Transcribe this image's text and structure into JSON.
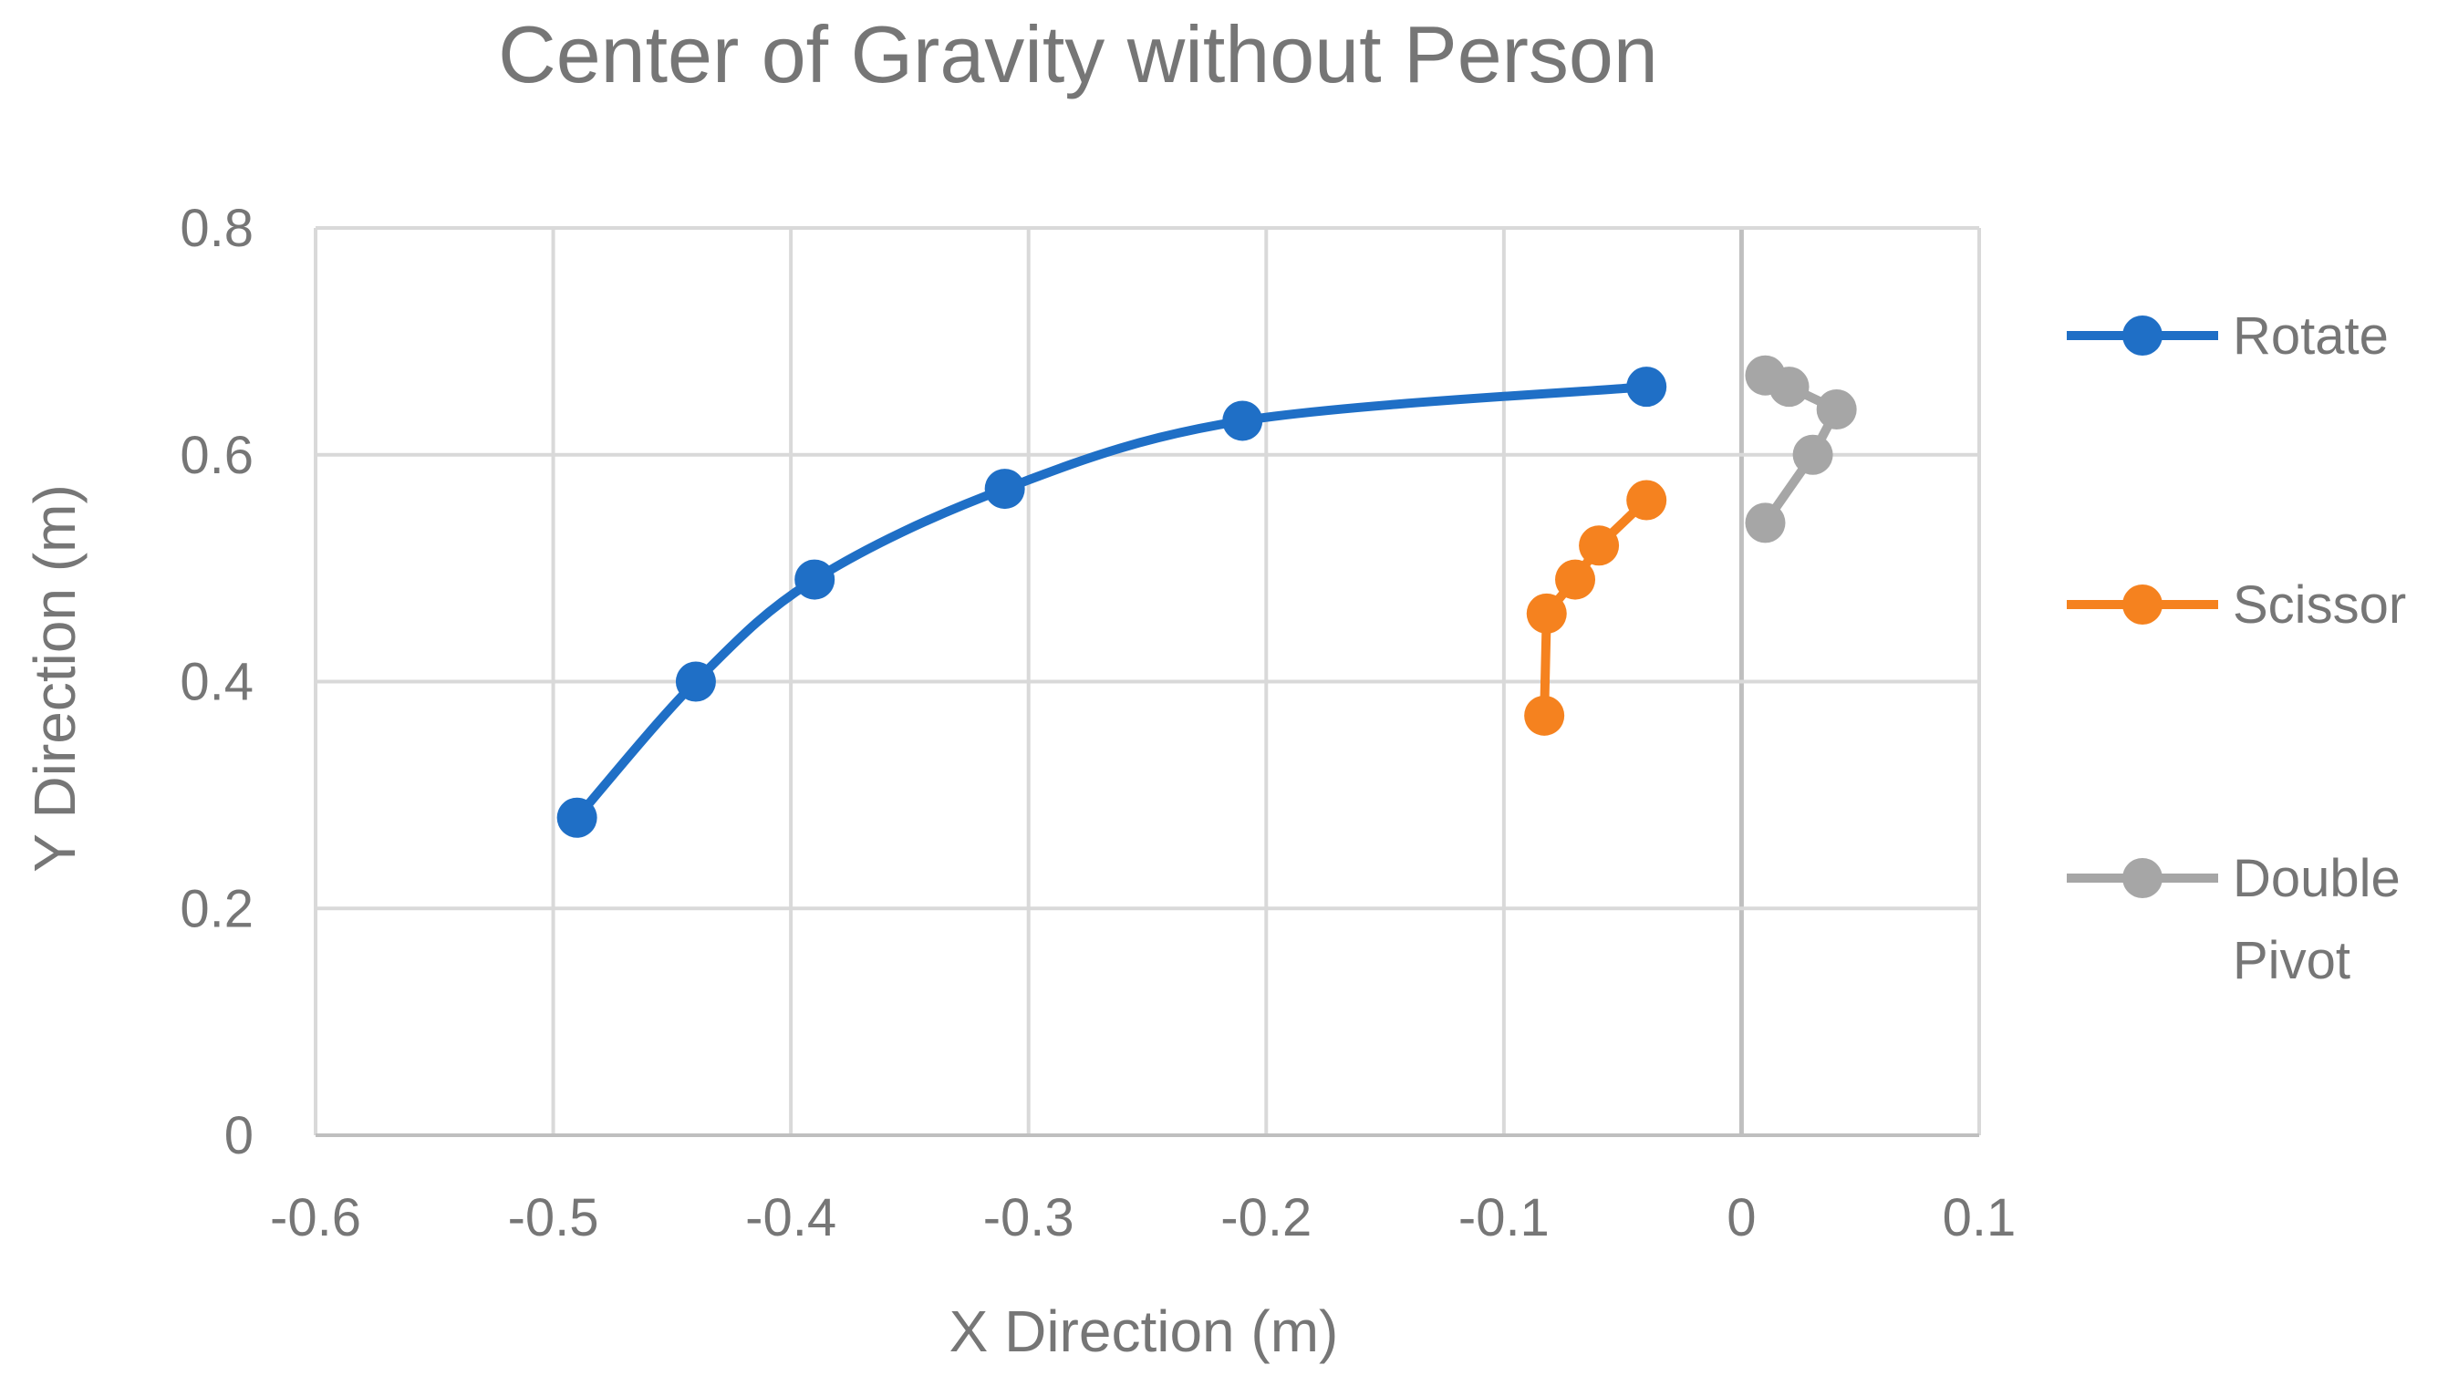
{
  "chart_data": {
    "type": "scatter",
    "title": "Center of Gravity without Person",
    "xlabel": "X Direction (m)",
    "ylabel": "Y Direction (m)",
    "xlim": [
      -0.6,
      0.1
    ],
    "ylim": [
      0,
      0.8
    ],
    "x_ticks": [
      "-0.6",
      "-0.5",
      "-0.4",
      "-0.3",
      "-0.2",
      "-0.1",
      "0",
      "0.1"
    ],
    "y_ticks": [
      "0",
      "0.2",
      "0.4",
      "0.6",
      "0.8"
    ],
    "grid": true,
    "legend_position": "right",
    "series": [
      {
        "name": "Rotate",
        "color": "#1f6fc6",
        "smooth": true,
        "points": [
          [
            -0.49,
            0.28
          ],
          [
            -0.44,
            0.4
          ],
          [
            -0.39,
            0.49
          ],
          [
            -0.31,
            0.57
          ],
          [
            -0.21,
            0.63
          ],
          [
            -0.04,
            0.66
          ]
        ]
      },
      {
        "name": "Scissor",
        "color": "#f5821f",
        "smooth": false,
        "points": [
          [
            -0.083,
            0.37
          ],
          [
            -0.082,
            0.46
          ],
          [
            -0.07,
            0.49
          ],
          [
            -0.06,
            0.52
          ],
          [
            -0.04,
            0.56
          ]
        ]
      },
      {
        "name": "Double Pivot",
        "legend_lines": [
          "Double",
          "Pivot"
        ],
        "color": "#a6a6a6",
        "smooth": false,
        "points": [
          [
            0.01,
            0.54
          ],
          [
            0.03,
            0.6
          ],
          [
            0.04,
            0.64
          ],
          [
            0.02,
            0.66
          ],
          [
            0.01,
            0.67
          ]
        ]
      }
    ]
  }
}
